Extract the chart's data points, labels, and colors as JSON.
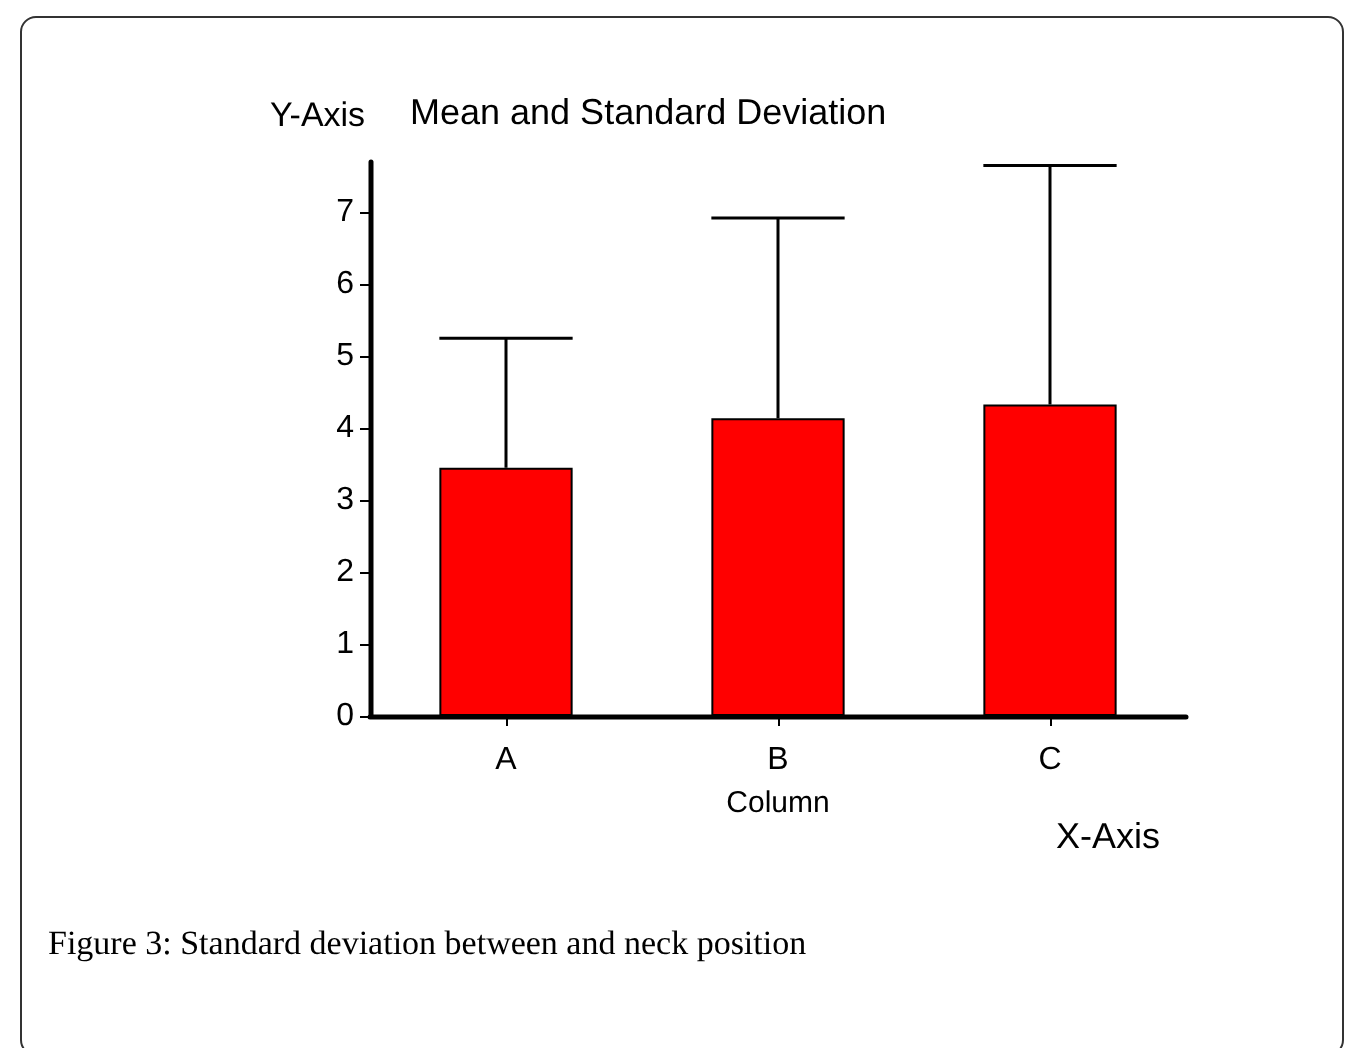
{
  "chart_data": {
    "type": "bar",
    "title": "Mean and Standard Deviation",
    "ylabel": "Y-Axis",
    "xlabel": "Column",
    "annotations": [
      "X-Axis",
      "Figure 3: Standard deviation between and neck position"
    ],
    "categories": [
      "A",
      "B",
      "C"
    ],
    "values": [
      3.45,
      4.14,
      4.33
    ],
    "errors": [
      [
        3.45,
        5.25
      ],
      [
        4.14,
        6.92
      ],
      [
        4.33,
        7.65
      ]
    ],
    "color": "#ff0000",
    "ylim": [
      0,
      7.7
    ],
    "yticks": [
      0,
      1,
      2,
      3,
      4,
      5,
      6,
      7
    ],
    "grid": false
  }
}
